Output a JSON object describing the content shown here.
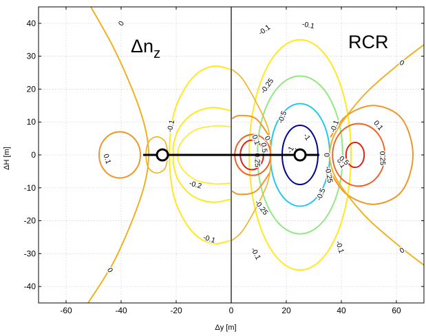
{
  "chart_data": {
    "type": "contour",
    "xlabel": "Δy [m]",
    "ylabel": "ΔH [m]",
    "xlim": [
      -70,
      70
    ],
    "ylim": [
      -45,
      45
    ],
    "xticks": [
      -60,
      -40,
      -20,
      0,
      20,
      40,
      60
    ],
    "yticks": [
      -40,
      -30,
      -20,
      -10,
      0,
      10,
      20,
      30,
      40
    ],
    "grid": true,
    "panels": [
      {
        "label": "Δn",
        "label_sub": "z",
        "x_range": [
          -70,
          0
        ],
        "contours": [
          {
            "level": "0",
            "color": "#f0b020"
          },
          {
            "level": "-0.1",
            "color": "#ffe820"
          },
          {
            "level": "-0.2",
            "color": "#ffe820"
          },
          {
            "level": "0.1",
            "color": "#f09628"
          }
        ]
      },
      {
        "label": "RCR",
        "x_range": [
          0,
          70
        ],
        "contours": [
          {
            "level": "-1",
            "color": "#000090"
          },
          {
            "level": "-0.5",
            "color": "#20c8f0"
          },
          {
            "level": "-0.25",
            "color": "#90e880"
          },
          {
            "level": "-0.1",
            "color": "#ffe820"
          },
          {
            "level": "0",
            "color": "#f0b020"
          },
          {
            "level": "0.1",
            "color": "#f09628"
          },
          {
            "level": "0.25",
            "color": "#f06020"
          },
          {
            "level": "0.5",
            "color": "#e02010"
          }
        ]
      }
    ],
    "markers": [
      {
        "type": "circle",
        "x": -25,
        "y": 0
      },
      {
        "type": "circle",
        "x": 25,
        "y": 0
      }
    ],
    "segment": {
      "x": [
        -32,
        32
      ],
      "y": [
        0,
        0
      ]
    },
    "contour_labels": [
      {
        "text": "0",
        "x": -40,
        "y": 40,
        "rot": 58
      },
      {
        "text": "0",
        "x": -44,
        "y": -35,
        "rot": -58
      },
      {
        "text": "0",
        "x": -24.3,
        "y": -1.2,
        "rot": -82
      },
      {
        "text": "-0.1",
        "x": -22,
        "y": 8.8,
        "rot": 78
      },
      {
        "text": "-0.1",
        "x": -8,
        "y": -25.5,
        "rot": -18
      },
      {
        "text": "-0.2",
        "x": -13,
        "y": -9,
        "rot": -15
      },
      {
        "text": "0.1",
        "x": -45,
        "y": -1.2,
        "rot": -72
      },
      {
        "text": "-0.1",
        "x": 12,
        "y": 38,
        "rot": 36
      },
      {
        "text": "-0.1",
        "x": 28,
        "y": 39.5,
        "rot": -12
      },
      {
        "text": "-0.25",
        "x": 13,
        "y": 21,
        "rot": 55
      },
      {
        "text": "-0.5",
        "x": 18.5,
        "y": 11.5,
        "rot": 70
      },
      {
        "text": "-1",
        "x": 21.5,
        "y": 1.6,
        "rot": 62
      },
      {
        "text": "-1",
        "x": 27.5,
        "y": 5.5,
        "rot": -55
      },
      {
        "text": "-1",
        "x": 24,
        "y": 1.4,
        "rot": -55
      },
      {
        "text": "0.25",
        "x": 9.5,
        "y": -1.6,
        "rot": -88
      },
      {
        "text": "0.5",
        "x": 12,
        "y": 2.2,
        "rot": -82
      },
      {
        "text": "0.1",
        "x": 9,
        "y": 4.6,
        "rot": -70
      },
      {
        "text": "0",
        "x": 13.2,
        "y": 5.1,
        "rot": -60
      },
      {
        "text": "0",
        "x": 34.7,
        "y": 0,
        "rot": -88
      },
      {
        "text": "-0.25",
        "x": 35.5,
        "y": -6,
        "rot": -80
      },
      {
        "text": "-0.25",
        "x": 11,
        "y": -16,
        "rot": -52
      },
      {
        "text": "-0.5",
        "x": 32.5,
        "y": -12,
        "rot": 68
      },
      {
        "text": "-0.1",
        "x": 37.5,
        "y": 8.7,
        "rot": 70
      },
      {
        "text": "0.1",
        "x": 40,
        "y": -2.5,
        "rot": -60
      },
      {
        "text": "0.5",
        "x": 41,
        "y": -1.7,
        "rot": -40
      },
      {
        "text": "0.25",
        "x": 55,
        "y": -1,
        "rot": -88
      },
      {
        "text": "0.1",
        "x": 53.5,
        "y": 9,
        "rot": -50
      },
      {
        "text": "-0.1",
        "x": 39.5,
        "y": -28,
        "rot": -72
      },
      {
        "text": "-0.1",
        "x": 9,
        "y": -30,
        "rot": -62
      },
      {
        "text": "0",
        "x": 62,
        "y": 28,
        "rot": -33
      },
      {
        "text": "0",
        "x": 62,
        "y": -29,
        "rot": 33
      }
    ]
  }
}
